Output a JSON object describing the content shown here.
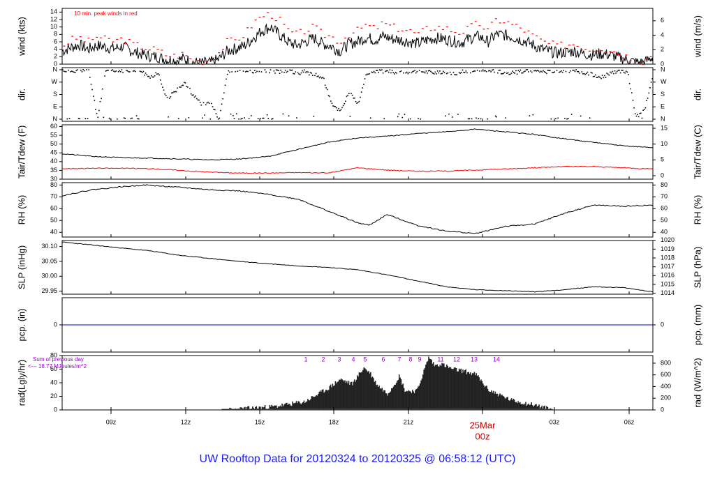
{
  "footer_title": "UW Rooftop Data for 20120324  to  20120325 @ 06:58:12  (UTC)",
  "colors": {
    "ink": "#000000",
    "peak": "#ff0000",
    "dew": "#ff0000",
    "precip": "#0000cc",
    "note": "#9900cc",
    "title": "#1a1aff",
    "date": "#cc0000"
  },
  "x_axis": {
    "ticks": [
      "09z",
      "12z",
      "15z",
      "18z",
      "21z",
      "00z",
      "03z",
      "06z"
    ],
    "date_label": "25Mar",
    "date_time": "00z"
  },
  "chart_data": [
    {
      "id": "wind",
      "type": "line",
      "ylabel_left": "wind (kts)",
      "ylabel_right": "wind (m/s)",
      "yticks_left": [
        0,
        2,
        4,
        6,
        8,
        10,
        12,
        14
      ],
      "ylim": [
        0,
        15
      ],
      "yticks_right": [
        0,
        2,
        4,
        6
      ],
      "annotation": "10 min. peak winds in red",
      "series": [
        {
          "values": [
            3.5,
            4.5,
            5.2,
            4,
            5,
            4.6,
            4.2,
            4.8,
            3.5,
            2.8,
            2.2,
            2,
            1.2,
            1,
            1.5,
            0.5,
            0.3,
            0.4,
            1.2,
            3.5,
            4.2,
            5,
            7,
            9,
            10,
            8,
            6,
            5,
            6,
            7,
            5.5,
            4.8,
            3.5,
            5.5,
            6,
            7.2,
            6.5,
            7.5,
            6.8,
            6.5,
            6,
            5.5,
            6.5,
            7,
            6.8,
            6.2,
            5.8,
            7,
            7.5,
            6,
            8,
            7.8,
            7.2,
            6.4,
            5.5,
            4.2,
            3.5,
            3,
            3.2,
            3.5,
            2.8,
            2.5,
            2.8,
            2.5,
            1.8,
            1.2,
            0.5,
            0.4,
            2
          ]
        },
        {
          "values": [
            4.8,
            6.5,
            7.2,
            6,
            7.5,
            6.6,
            6.2,
            6.8,
            5.5,
            4.8,
            4.2,
            3.8,
            2.5,
            2.2,
            2.8,
            1,
            0.8,
            1,
            3,
            6,
            6.5,
            8,
            11,
            13,
            13.5,
            12,
            9,
            8,
            9,
            10,
            8,
            7.5,
            6,
            8,
            9,
            10.5,
            9.5,
            11,
            10,
            9.5,
            9,
            8,
            9.5,
            10,
            9.8,
            9,
            8.5,
            10,
            11,
            9,
            12,
            11.5,
            10.5,
            9.5,
            8,
            6.5,
            5.5,
            5,
            5.2,
            5.5,
            4.5,
            4,
            4.5,
            4,
            3,
            2.2,
            1,
            0.8,
            3
          ]
        }
      ]
    },
    {
      "id": "dir",
      "type": "scatter",
      "ylabel_left": "dir.",
      "ylabel_right": "dir.",
      "ycategories": [
        "N",
        "E",
        "S",
        "W",
        "N"
      ],
      "ylim": [
        0,
        360
      ],
      "series": [
        {
          "values": [
            355,
            350,
            358,
            352,
            8,
            355,
            345,
            354,
            360,
            350,
            300,
            340,
            150,
            200,
            260,
            180,
            100,
            120,
            5,
            350,
            352,
            355,
            348,
            358,
            350,
            345,
            352,
            330,
            345,
            320,
            300,
            100,
            60,
            200,
            110,
            330,
            345,
            350,
            340,
            335,
            348,
            352,
            345,
            340,
            330,
            325,
            345,
            350,
            355,
            350,
            345,
            340,
            335,
            348,
            352,
            350,
            345,
            355,
            350,
            348,
            340,
            320,
            300,
            330,
            345,
            350,
            20,
            60,
            340
          ]
        }
      ]
    },
    {
      "id": "temp",
      "type": "line",
      "ylabel_left": "Tair/Tdew (F)",
      "ylabel_right": "Tair/Tdew (C)",
      "yticks_left": [
        30,
        35,
        40,
        45,
        50,
        55,
        60
      ],
      "ylim": [
        30,
        61
      ],
      "yticks_right": [
        0,
        5,
        10,
        15
      ],
      "x": [
        0,
        0.05,
        0.1,
        0.15,
        0.2,
        0.25,
        0.3,
        0.35,
        0.4,
        0.45,
        0.5,
        0.55,
        0.6,
        0.65,
        0.7,
        0.75,
        0.8,
        0.85,
        0.9,
        0.95,
        1
      ],
      "series": [
        {
          "values": [
            44.5,
            43,
            42.3,
            42,
            41.5,
            41,
            41.5,
            43,
            47,
            51,
            53.5,
            54.5,
            56,
            57,
            58.5,
            57,
            55.5,
            53,
            51,
            49,
            48
          ]
        },
        {
          "values": [
            36,
            36.2,
            36.2,
            36,
            35,
            34,
            33.5,
            33.5,
            33.8,
            33.5,
            36.5,
            35.2,
            34.5,
            34.6,
            35.2,
            35.8,
            36.5,
            37.2,
            37.2,
            36.5,
            35.8
          ]
        }
      ]
    },
    {
      "id": "rh",
      "type": "line",
      "ylabel_left": "RH (%)",
      "ylabel_right": "RH (%)",
      "yticks_left": [
        40,
        50,
        60,
        70,
        80
      ],
      "ylim": [
        36,
        82
      ],
      "yticks_right": [
        40,
        50,
        60,
        70,
        80
      ],
      "x": [
        0,
        0.05,
        0.1,
        0.14,
        0.2,
        0.25,
        0.3,
        0.35,
        0.4,
        0.45,
        0.5,
        0.52,
        0.55,
        0.6,
        0.65,
        0.7,
        0.75,
        0.8,
        0.85,
        0.9,
        0.95,
        1
      ],
      "series": [
        {
          "values": [
            71,
            76,
            78.5,
            80,
            78,
            76,
            75,
            72,
            68,
            58,
            48,
            46,
            55,
            46,
            41,
            39,
            45,
            47,
            56,
            63,
            62,
            63
          ]
        }
      ]
    },
    {
      "id": "slp",
      "type": "line",
      "ylabel_left": "SLP (inHg)",
      "ylabel_right": "SLP (hPa)",
      "yticks_left": [
        "29.95",
        "30.00",
        "30.05",
        "30.10"
      ],
      "ylim": [
        29.94,
        30.12
      ],
      "yticks_right": [
        1014,
        1015,
        1016,
        1017,
        1018,
        1019,
        1020
      ],
      "x": [
        0,
        0.05,
        0.1,
        0.15,
        0.2,
        0.25,
        0.3,
        0.35,
        0.4,
        0.45,
        0.5,
        0.55,
        0.6,
        0.65,
        0.7,
        0.75,
        0.8,
        0.85,
        0.9,
        0.95,
        1
      ],
      "series": [
        {
          "values": [
            30.115,
            30.105,
            30.095,
            30.085,
            30.07,
            30.06,
            30.05,
            30.042,
            30.035,
            30.03,
            30.022,
            30.005,
            29.985,
            29.965,
            29.955,
            29.952,
            29.948,
            29.955,
            29.965,
            29.962,
            29.948
          ]
        }
      ]
    },
    {
      "id": "pcp",
      "type": "line",
      "ylabel_left": "pcp. (in)",
      "ylabel_right": "pcp. (mm)",
      "yticks_left": [
        0
      ],
      "yticks_right": [
        0
      ],
      "ylim": [
        -1,
        1
      ],
      "series": [
        {
          "values": [
            0,
            0
          ]
        }
      ]
    },
    {
      "id": "rad",
      "type": "area",
      "ylabel_left": "rad(Lgly/hr)",
      "ylabel_right": "rad (W/m^2)",
      "yticks_left": [
        0,
        20,
        40,
        60,
        80
      ],
      "ylim": [
        0,
        80
      ],
      "yticks_right": [
        0,
        200,
        400,
        600,
        800
      ],
      "annotation_line1": "Sum of previous day",
      "annotation_line2": "<--- 18.77 MJoules/m^2",
      "event_labels": [
        "1",
        "2",
        "3",
        "4",
        "5",
        "6",
        "7",
        "8",
        "9",
        "11",
        "12",
        "13",
        "14"
      ],
      "x": [
        0,
        0.28,
        0.31,
        0.36,
        0.41,
        0.43,
        0.45,
        0.47,
        0.49,
        0.5,
        0.51,
        0.52,
        0.53,
        0.535,
        0.55,
        0.56,
        0.57,
        0.58,
        0.6,
        0.62,
        0.63,
        0.64,
        0.65,
        0.66,
        0.68,
        0.7,
        0.72,
        0.74,
        0.76,
        0.8,
        0.83,
        1
      ],
      "series": [
        {
          "values": [
            0,
            0,
            2,
            5,
            12,
            22,
            32,
            45,
            38,
            50,
            62,
            55,
            40,
            35,
            24,
            36,
            50,
            28,
            28,
            78,
            65,
            68,
            64,
            60,
            57,
            52,
            30,
            22,
            14,
            7,
            0,
            0
          ]
        }
      ]
    }
  ]
}
